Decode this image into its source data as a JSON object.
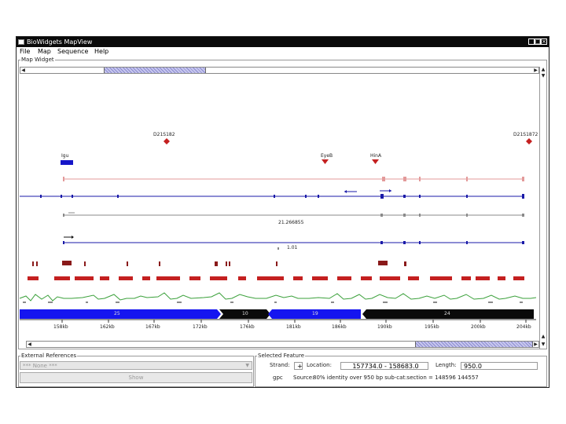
{
  "window": {
    "title": "BioWidgets MapView",
    "buttons": {
      "minimize": "_",
      "maximize": "□",
      "close": "×"
    }
  },
  "menu": [
    "File",
    "Map",
    "Sequence",
    "Help"
  ],
  "map_widget": {
    "title": "Map Widget",
    "labels": {
      "top_left_marker": "D21S182",
      "top_right_marker": "D21S1872",
      "blue_box": "Igu",
      "red_mid1": "EyeB",
      "red_mid2": "HinA",
      "gene_label_1": "21.266855",
      "gene_label_2": "1.01"
    },
    "ruler": {
      "segments": [
        "25",
        "10",
        "19",
        "24"
      ],
      "ticks": [
        "158kb",
        "162kb",
        "167kb",
        "172kb",
        "176kb",
        "181kb",
        "186kb",
        "190kb",
        "195kb",
        "200kb",
        "204kb"
      ]
    },
    "colors": {
      "track_blue": "#1a1aa8",
      "track_pink": "#e39a9a",
      "track_gray": "#8a8a8a",
      "marker_red": "#c42020",
      "blue_segment": "#1515f0",
      "black_segment": "#0a0a0a",
      "graph_green": "#3aa03a",
      "dark_red": "#8a1a1a"
    }
  },
  "external_references": {
    "title": "External References",
    "combo_value": "*** None ***",
    "button_label": "Show"
  },
  "selected_feature": {
    "title": "Selected Feature",
    "strand_label": "Strand:",
    "strand_value": "+",
    "location_label": "Location:",
    "location_value": "157734.0 - 158683.0",
    "length_label": "Length:",
    "length_value": "950.0",
    "gpc_label": "gpc",
    "source_label": "Source:",
    "source_value": "80% identity over 950 bp sub-cat:section  = 148596 144557"
  }
}
